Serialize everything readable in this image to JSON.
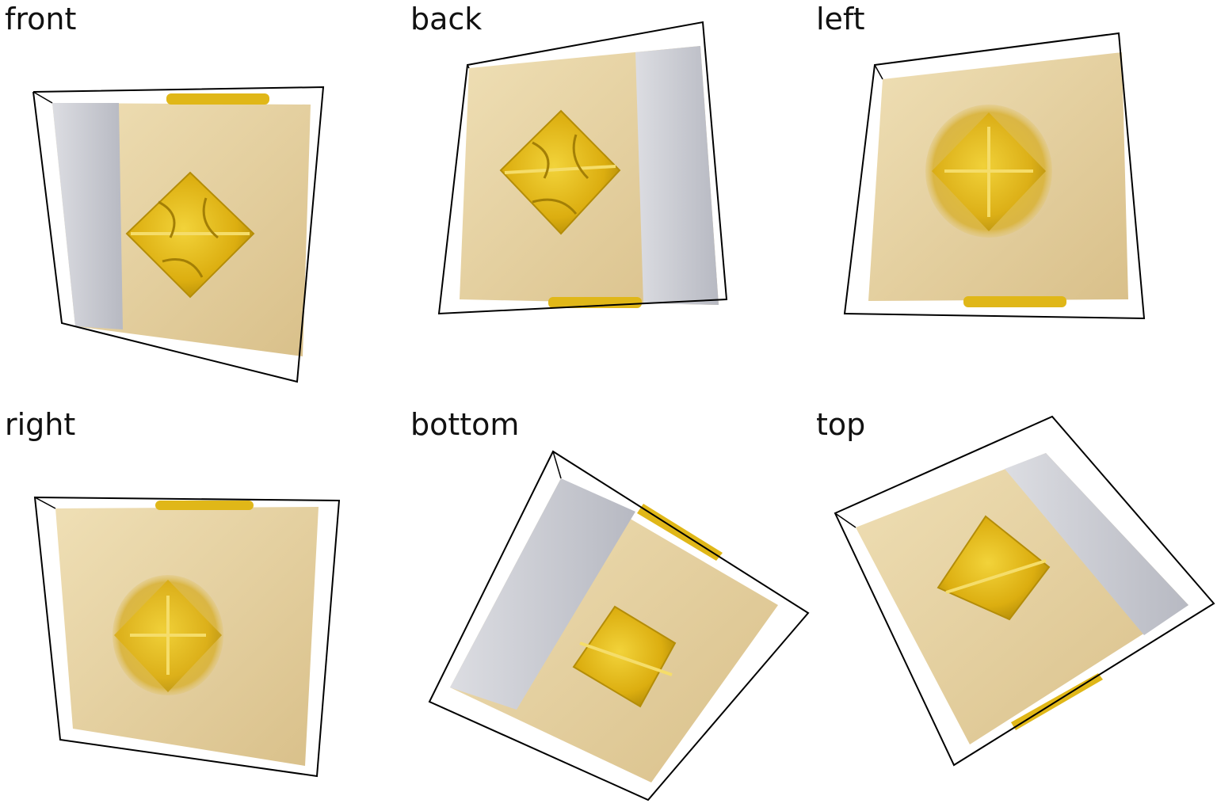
{
  "panels": [
    {
      "label": "front"
    },
    {
      "label": "back"
    },
    {
      "label": "left"
    },
    {
      "label": "right"
    },
    {
      "label": "bottom"
    },
    {
      "label": "top"
    }
  ],
  "colors": {
    "tan": "#e6d3a3",
    "tan_dark": "#cdb17a",
    "grey": "#cfd0d6",
    "grey_dark": "#b9bbc4",
    "gold": "#e3b914",
    "gold_dark": "#b8920a",
    "frame": "#000000"
  }
}
